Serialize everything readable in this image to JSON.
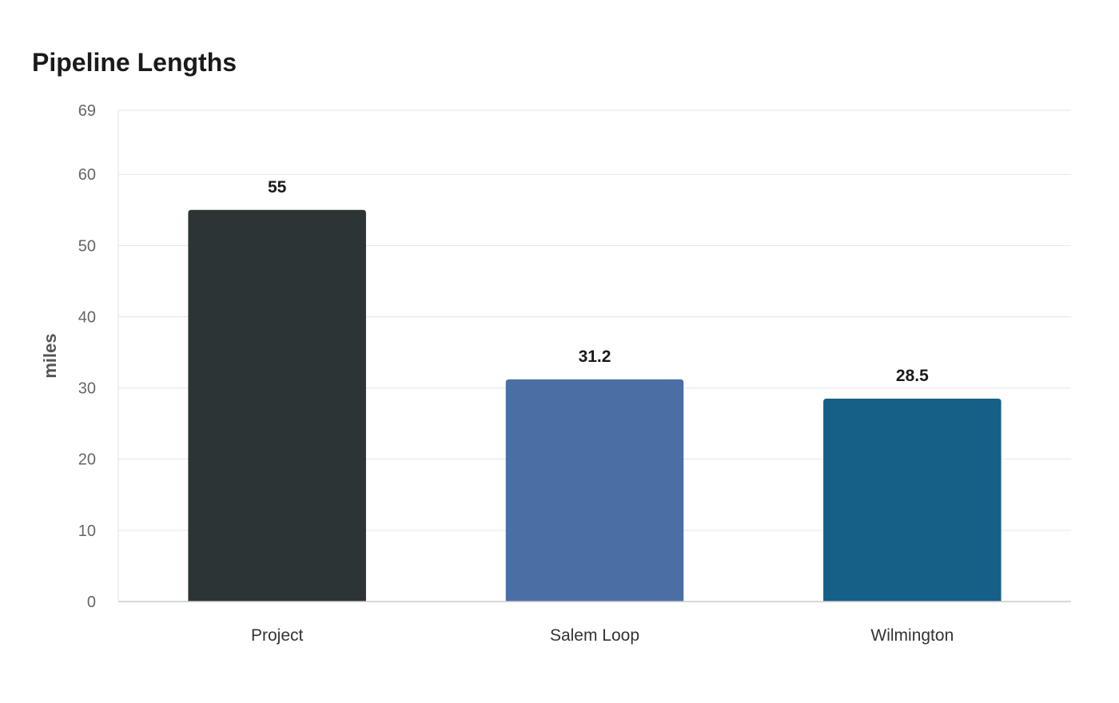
{
  "chart_data": {
    "type": "bar",
    "title": "Pipeline Lengths",
    "xlabel": "",
    "ylabel": "miles",
    "categories": [
      "Project",
      "Salem Loop",
      "Wilmington"
    ],
    "values": [
      55,
      31.2,
      28.5
    ],
    "value_labels": [
      "55",
      "31.2",
      "28.5"
    ],
    "colors": [
      "#2d3436",
      "#4a6fa5",
      "#166088"
    ],
    "ylim": [
      0,
      69
    ],
    "yticks": [
      0,
      10,
      20,
      30,
      40,
      50,
      60,
      69
    ],
    "grid": true,
    "legend": "none"
  }
}
